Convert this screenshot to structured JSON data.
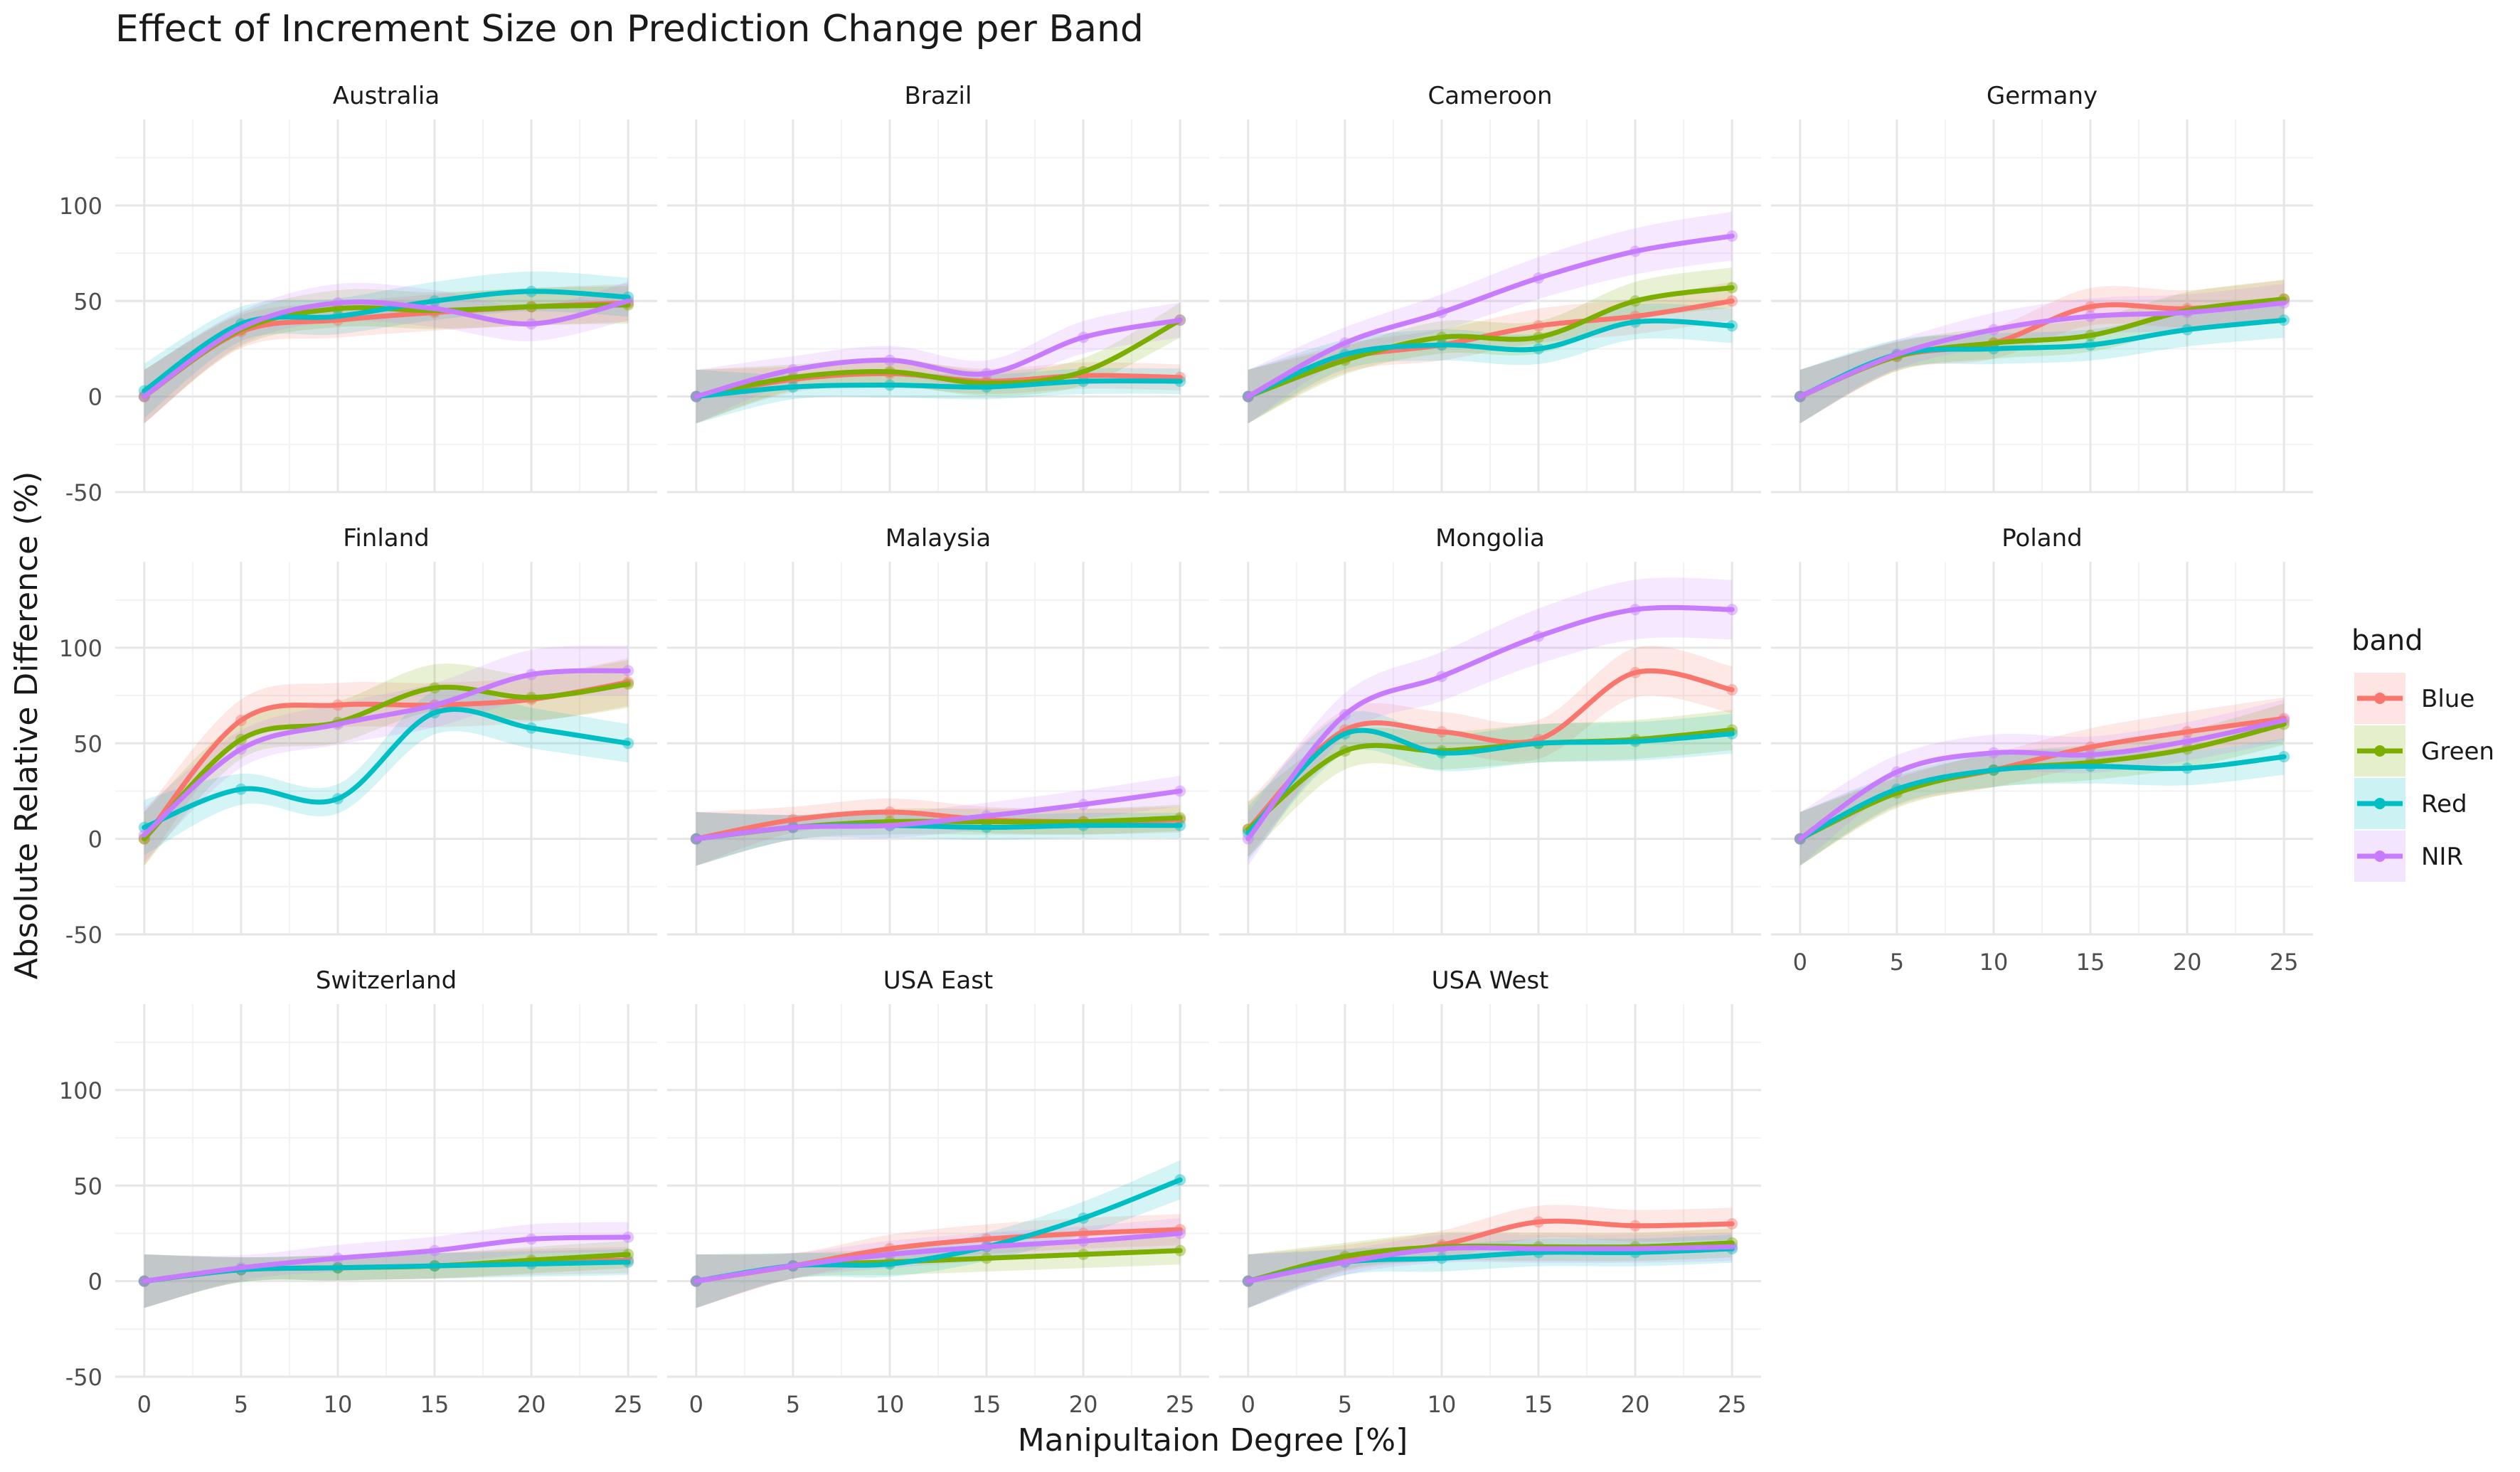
{
  "title": "Effect of Increment Size on Prediction Change per Band",
  "xlabel": "Manipultaion Degree [%]",
  "ylabel": "Absolute Relative Difference (%)",
  "legend": {
    "title": "band",
    "items": [
      {
        "name": "Blue",
        "color": "#F8766D"
      },
      {
        "name": "Green",
        "color": "#7CAE00"
      },
      {
        "name": "Red",
        "color": "#00BFC4"
      },
      {
        "name": "NIR",
        "color": "#C77CFF"
      }
    ]
  },
  "chart_data": {
    "type": "line",
    "facet_layout": "4 columns x 3 rows, shared axes",
    "x_ticks": [
      0,
      5,
      10,
      15,
      20,
      25
    ],
    "y_ticks": [
      -50,
      0,
      50,
      100
    ],
    "xlim": [
      -1.5,
      26.5
    ],
    "ylim": [
      -50,
      145
    ],
    "grid": true,
    "legend_position": "right",
    "smoothing": "loess with confidence band",
    "x": [
      0,
      5,
      10,
      15,
      20,
      25
    ],
    "facets": [
      {
        "label": "Australia",
        "series": [
          {
            "name": "Blue",
            "values": [
              0,
              34,
              40,
              44,
              47,
              49
            ]
          },
          {
            "name": "Green",
            "values": [
              0,
              35,
              46,
              45,
              47,
              48
            ]
          },
          {
            "name": "Red",
            "values": [
              3,
              38,
              42,
              50,
              55,
              52
            ]
          },
          {
            "name": "NIR",
            "values": [
              0,
              36,
              49,
              46,
              38,
              50
            ]
          }
        ]
      },
      {
        "label": "Brazil",
        "series": [
          {
            "name": "Blue",
            "values": [
              0,
              9,
              12,
              8,
              11,
              10
            ]
          },
          {
            "name": "Green",
            "values": [
              0,
              10,
              13,
              7,
              13,
              40
            ]
          },
          {
            "name": "Red",
            "values": [
              0,
              5,
              6,
              5,
              8,
              8
            ]
          },
          {
            "name": "NIR",
            "values": [
              0,
              14,
              19,
              12,
              31,
              40
            ]
          }
        ]
      },
      {
        "label": "Cameroon",
        "series": [
          {
            "name": "Blue",
            "values": [
              0,
              20,
              27,
              37,
              42,
              50
            ]
          },
          {
            "name": "Green",
            "values": [
              0,
              19,
              31,
              31,
              50,
              57
            ]
          },
          {
            "name": "Red",
            "values": [
              0,
              22,
              27,
              25,
              39,
              37
            ]
          },
          {
            "name": "NIR",
            "values": [
              0,
              28,
              44,
              62,
              76,
              84
            ]
          }
        ]
      },
      {
        "label": "Germany",
        "series": [
          {
            "name": "Blue",
            "values": [
              0,
              21,
              28,
              47,
              46,
              51
            ]
          },
          {
            "name": "Green",
            "values": [
              0,
              21,
              28,
              32,
              45,
              51
            ]
          },
          {
            "name": "Red",
            "values": [
              0,
              22,
              25,
              27,
              35,
              40
            ]
          },
          {
            "name": "NIR",
            "values": [
              0,
              22,
              35,
              42,
              44,
              49
            ]
          }
        ]
      },
      {
        "label": "Finland",
        "series": [
          {
            "name": "Blue",
            "values": [
              0,
              62,
              70,
              70,
              73,
              82
            ]
          },
          {
            "name": "Green",
            "values": [
              0,
              52,
              61,
              79,
              74,
              81
            ]
          },
          {
            "name": "Red",
            "values": [
              6,
              26,
              21,
              66,
              58,
              50
            ]
          },
          {
            "name": "NIR",
            "values": [
              2,
              47,
              60,
              70,
              86,
              88
            ]
          }
        ]
      },
      {
        "label": "Malaysia",
        "series": [
          {
            "name": "Blue",
            "values": [
              0,
              10,
              14,
              10,
              9,
              10
            ]
          },
          {
            "name": "Green",
            "values": [
              0,
              6,
              9,
              9,
              9,
              11
            ]
          },
          {
            "name": "Red",
            "values": [
              0,
              6,
              7,
              6,
              7,
              7
            ]
          },
          {
            "name": "NIR",
            "values": [
              0,
              6,
              7,
              12,
              18,
              25
            ]
          }
        ]
      },
      {
        "label": "Mongolia",
        "series": [
          {
            "name": "Blue",
            "values": [
              5,
              57,
              56,
              52,
              87,
              78
            ]
          },
          {
            "name": "Green",
            "values": [
              5,
              46,
              46,
              50,
              52,
              57
            ]
          },
          {
            "name": "Red",
            "values": [
              3,
              55,
              45,
              50,
              51,
              55
            ]
          },
          {
            "name": "NIR",
            "values": [
              0,
              65,
              85,
              106,
              120,
              120
            ]
          }
        ]
      },
      {
        "label": "Poland",
        "series": [
          {
            "name": "Blue",
            "values": [
              0,
              25,
              36,
              48,
              56,
              63
            ]
          },
          {
            "name": "Green",
            "values": [
              0,
              24,
              36,
              40,
              47,
              60
            ]
          },
          {
            "name": "Red",
            "values": [
              0,
              26,
              36,
              38,
              37,
              43
            ]
          },
          {
            "name": "NIR",
            "values": [
              0,
              35,
              45,
              44,
              51,
              62
            ]
          }
        ]
      },
      {
        "label": "Switzerland",
        "series": [
          {
            "name": "Blue",
            "values": [
              0,
              6,
              7,
              8,
              10,
              11
            ]
          },
          {
            "name": "Green",
            "values": [
              0,
              6,
              7,
              8,
              11,
              14
            ]
          },
          {
            "name": "Red",
            "values": [
              0,
              6,
              7,
              8,
              9,
              10
            ]
          },
          {
            "name": "NIR",
            "values": [
              0,
              7,
              12,
              16,
              22,
              23
            ]
          }
        ]
      },
      {
        "label": "USA East",
        "series": [
          {
            "name": "Blue",
            "values": [
              0,
              8,
              17,
              22,
              25,
              27
            ]
          },
          {
            "name": "Green",
            "values": [
              0,
              8,
              10,
              12,
              14,
              16
            ]
          },
          {
            "name": "Red",
            "values": [
              0,
              8,
              9,
              18,
              33,
              53
            ]
          },
          {
            "name": "NIR",
            "values": [
              0,
              8,
              14,
              18,
              21,
              25
            ]
          }
        ]
      },
      {
        "label": "USA West",
        "series": [
          {
            "name": "Blue",
            "values": [
              0,
              12,
              19,
              31,
              29,
              30
            ]
          },
          {
            "name": "Green",
            "values": [
              0,
              13,
              18,
              18,
              18,
              20
            ]
          },
          {
            "name": "Red",
            "values": [
              0,
              10,
              12,
              15,
              15,
              17
            ]
          },
          {
            "name": "NIR",
            "values": [
              0,
              10,
              17,
              17,
              17,
              18
            ]
          }
        ]
      }
    ]
  }
}
